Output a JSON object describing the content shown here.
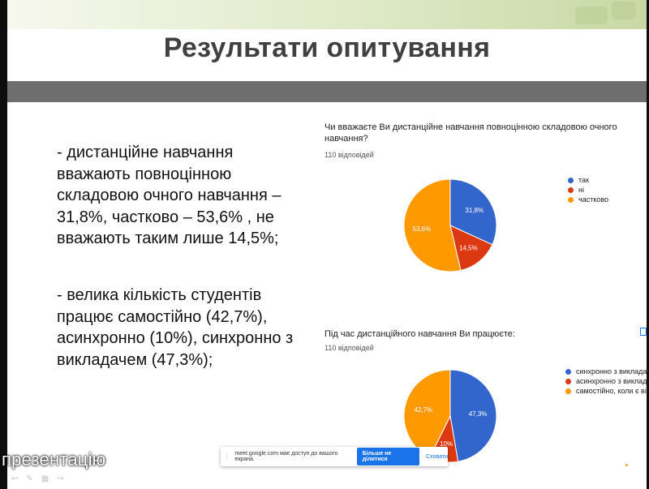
{
  "slide": {
    "title": "Результати опитування",
    "bullets": [
      [
        "-    дистанційне навчання",
        "вважають повноцінною",
        "складовою очного навчання –",
        "31,8%, частково – 53,6% , не",
        "вважають таким лише 14,5%;"
      ],
      [
        "-    велика кількість студентів",
        "працює самостійно (42,7%),",
        "асинхронно (10%), синхронно з",
        "викладачем (47,3%);"
      ]
    ]
  },
  "chart1_text": {
    "question_line1": "Чи вважаєте Ви дистанційне навчання повноцінною складовою очного",
    "question_line2": "навчання?",
    "responses": "110 відповідей"
  },
  "chart2_text": {
    "question": "Під час дистанційного навчання Ви працюєте:",
    "responses": "110 відповідей"
  },
  "chart_data": [
    {
      "type": "pie",
      "labels": [
        "так",
        "ні",
        "частково"
      ],
      "values": [
        31.8,
        14.5,
        53.6
      ],
      "slice_labels": [
        "31,8%",
        "14,5%",
        "53,6%"
      ],
      "colors": [
        "#3366cc",
        "#dc3912",
        "#ff9900"
      ],
      "legend_position": "right"
    },
    {
      "type": "pie",
      "labels": [
        "синхронно з викладачем",
        "асинхронно з викладачем",
        "самостійно, коли є вільний"
      ],
      "values": [
        47.3,
        10,
        42.7
      ],
      "slice_labels": [
        "47,3%",
        "10%",
        "42,7%"
      ],
      "colors": [
        "#3366cc",
        "#dc3912",
        "#ff9900"
      ],
      "legend_position": "right"
    }
  ],
  "meet": {
    "presenting_label": "презентацію",
    "share_text": "meet.google.com має доступ до вашого екрана.",
    "stop_button": "Більше не ділитися",
    "hide_link": "Сховати"
  }
}
